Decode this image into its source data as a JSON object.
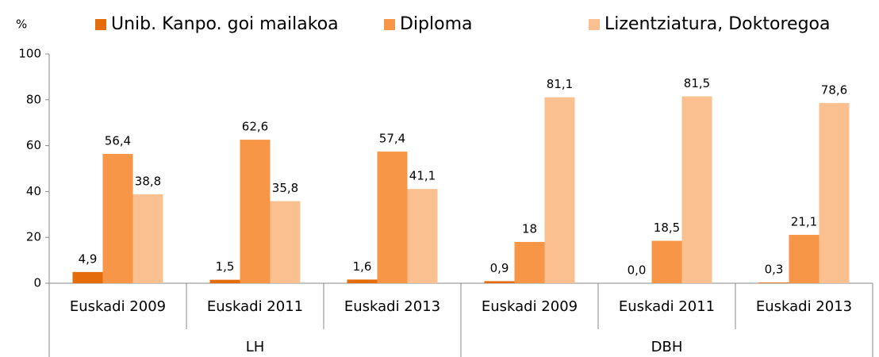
{
  "chart_data": {
    "type": "bar",
    "y_label": "%",
    "groups": [
      {
        "name": "LH",
        "categories": [
          "Euskadi 2009",
          "Euskadi 2011",
          "Euskadi 2013"
        ]
      },
      {
        "name": "DBH",
        "categories": [
          "Euskadi 2009",
          "Euskadi 2011",
          "Euskadi 2013"
        ]
      }
    ],
    "series": [
      {
        "name": "Unib. Kanpo. goi mailakoa",
        "color": "#e46c0a",
        "values": [
          4.9,
          1.5,
          1.6,
          0.9,
          0.0,
          0.3
        ],
        "value_labels": [
          "4,9",
          "1,5",
          "1,6",
          "0,9",
          "0,0",
          "0,3"
        ]
      },
      {
        "name": "Diploma",
        "color": "#f79646",
        "values": [
          56.4,
          62.6,
          57.4,
          18,
          18.5,
          21.1
        ],
        "value_labels": [
          "56,4",
          "62,6",
          "57,4",
          "18",
          "18,5",
          "21,1"
        ]
      },
      {
        "name": "Lizentziatura, Doktoregoa",
        "color": "#fac090",
        "values": [
          38.8,
          35.8,
          41.1,
          81.1,
          81.5,
          78.6
        ],
        "value_labels": [
          "38,8",
          "35,8",
          "41,1",
          "81,1",
          "81,5",
          "78,6"
        ]
      }
    ],
    "ylim": [
      0,
      100
    ],
    "yticks": [
      0,
      20,
      40,
      60,
      80,
      100
    ],
    "grid": false,
    "legend": "top"
  }
}
